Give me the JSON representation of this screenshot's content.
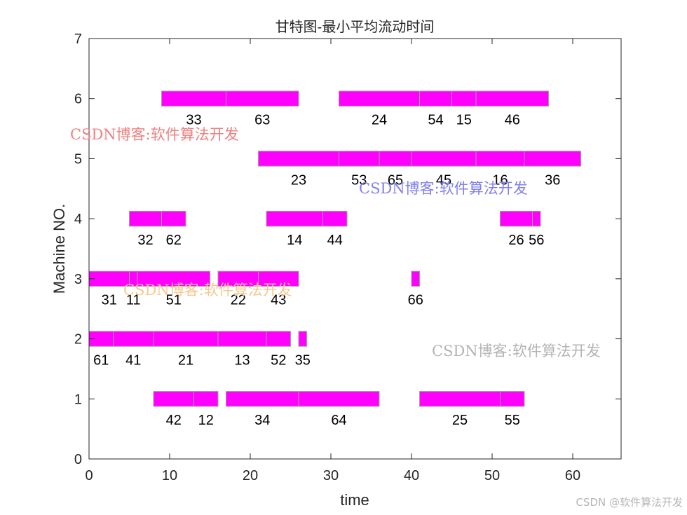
{
  "chart_data": {
    "type": "gantt",
    "title": "甘特图-最小平均流动时间",
    "xlabel": "time",
    "ylabel": "Machine NO.",
    "xlim": [
      0,
      66
    ],
    "ylim": [
      0,
      7
    ],
    "xticks": [
      "0",
      "10",
      "20",
      "30",
      "40",
      "50",
      "60"
    ],
    "yticks": [
      "0",
      "1",
      "2",
      "3",
      "4",
      "5",
      "6",
      "7"
    ],
    "grid": false,
    "bar_color": "#ff00ff",
    "machines": [
      {
        "machine": 6,
        "tasks": [
          {
            "label": "33",
            "start": 9,
            "end": 17
          },
          {
            "label": "63",
            "start": 17,
            "end": 26
          },
          {
            "label": "24",
            "start": 31,
            "end": 41
          },
          {
            "label": "54",
            "start": 41,
            "end": 45
          },
          {
            "label": "15",
            "start": 45,
            "end": 48
          },
          {
            "label": "46",
            "start": 48,
            "end": 57
          }
        ]
      },
      {
        "machine": 5,
        "tasks": [
          {
            "label": "23",
            "start": 21,
            "end": 31
          },
          {
            "label": "53",
            "start": 31,
            "end": 36
          },
          {
            "label": "65",
            "start": 36,
            "end": 40
          },
          {
            "label": "45",
            "start": 40,
            "end": 48
          },
          {
            "label": "16",
            "start": 48,
            "end": 54
          },
          {
            "label": "36",
            "start": 54,
            "end": 61
          }
        ]
      },
      {
        "machine": 4,
        "tasks": [
          {
            "label": "32",
            "start": 5,
            "end": 9
          },
          {
            "label": "62",
            "start": 9,
            "end": 12
          },
          {
            "label": "14",
            "start": 22,
            "end": 29
          },
          {
            "label": "44",
            "start": 29,
            "end": 32
          },
          {
            "label": "26",
            "start": 51,
            "end": 55
          },
          {
            "label": "56",
            "start": 55,
            "end": 56
          }
        ]
      },
      {
        "machine": 3,
        "tasks": [
          {
            "label": "31",
            "start": 0,
            "end": 5
          },
          {
            "label": "11",
            "start": 5,
            "end": 6
          },
          {
            "label": "51",
            "start": 6,
            "end": 15
          },
          {
            "label": "22",
            "start": 16,
            "end": 21
          },
          {
            "label": "43",
            "start": 21,
            "end": 26
          },
          {
            "label": "66",
            "start": 40,
            "end": 41
          }
        ]
      },
      {
        "machine": 2,
        "tasks": [
          {
            "label": "61",
            "start": 0,
            "end": 3
          },
          {
            "label": "41",
            "start": 3,
            "end": 8
          },
          {
            "label": "21",
            "start": 8,
            "end": 16
          },
          {
            "label": "13",
            "start": 16,
            "end": 22
          },
          {
            "label": "52",
            "start": 22,
            "end": 25
          },
          {
            "label": "35",
            "start": 26,
            "end": 27
          }
        ]
      },
      {
        "machine": 1,
        "tasks": [
          {
            "label": "42",
            "start": 8,
            "end": 13
          },
          {
            "label": "12",
            "start": 13,
            "end": 16
          },
          {
            "label": "34",
            "start": 17,
            "end": 26
          },
          {
            "label": "64",
            "start": 26,
            "end": 36
          },
          {
            "label": "25",
            "start": 41,
            "end": 51
          },
          {
            "label": "55",
            "start": 51,
            "end": 54
          }
        ]
      }
    ]
  },
  "watermarks": [
    {
      "text": "CSDN博客:软件算法开发",
      "color": "#f08080"
    },
    {
      "text": "CSDN博客:软件算法开发",
      "color": "#8080f0"
    },
    {
      "text": "CSDN博客:软件算法开发",
      "color": "#f5c890"
    },
    {
      "text": "CSDN博客:软件算法开发",
      "color": "#b4b4b4"
    }
  ],
  "footer": {
    "credit": "CSDN @软件算法开发"
  }
}
